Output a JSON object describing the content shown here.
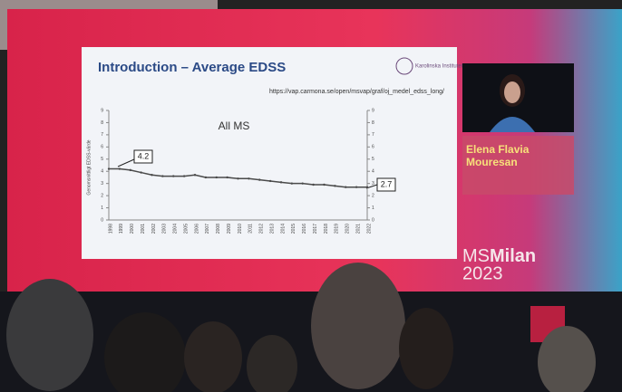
{
  "slide": {
    "title": "Introduction – Average EDSS",
    "url": "https://vap.carmona.se/open/msvap/graf/oj_medel_edss_long/",
    "logo": "Karolinska Institutet"
  },
  "chart_data": {
    "type": "line",
    "title": "All MS",
    "y_label": "Genomsnittligt EDSS-värde",
    "categories": [
      "1998",
      "1999",
      "2000",
      "2001",
      "2002",
      "2003",
      "2004",
      "2005",
      "2006",
      "2007",
      "2008",
      "2009",
      "2010",
      "2011",
      "2012",
      "2013",
      "2014",
      "2015",
      "2016",
      "2017",
      "2018",
      "2019",
      "2020",
      "2021",
      "2022"
    ],
    "series": [
      {
        "name": "All MS",
        "color": "#4a4a4a",
        "values": [
          4.2,
          4.2,
          4.1,
          3.9,
          3.7,
          3.6,
          3.6,
          3.6,
          3.7,
          3.5,
          3.5,
          3.5,
          3.4,
          3.4,
          3.3,
          3.2,
          3.1,
          3.0,
          3.0,
          2.9,
          2.9,
          2.8,
          2.7,
          2.7,
          2.7
        ]
      }
    ],
    "ylim": [
      0,
      9
    ],
    "yticks": [
      0,
      1,
      2,
      3,
      4,
      5,
      6,
      7,
      8,
      9
    ],
    "annotations": [
      "4.2",
      "2.7"
    ]
  },
  "speaker": {
    "name": "Elena Flavia Mouresan"
  },
  "event": {
    "prefix": "MS",
    "city": "Milan",
    "year": "2023"
  }
}
